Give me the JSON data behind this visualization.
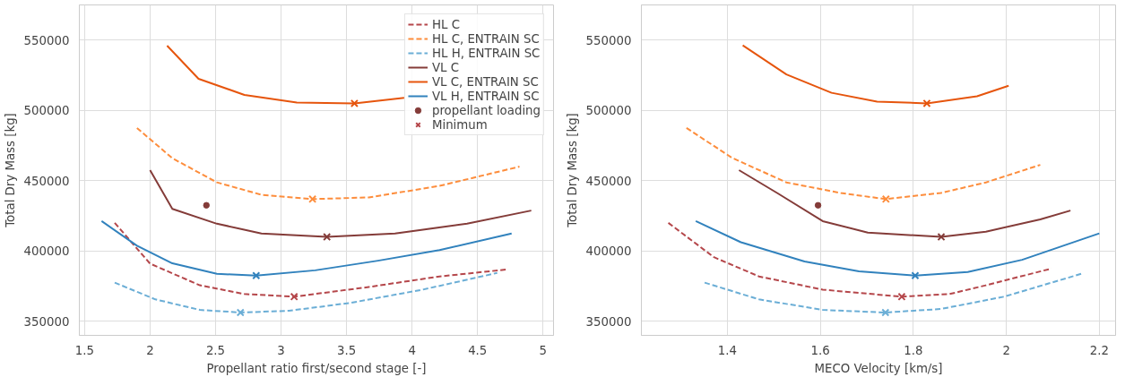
{
  "chart_data": [
    {
      "type": "line",
      "xlabel": "Propellant ratio first/second stage [-]",
      "ylabel": "Total Dry Mass [kg]",
      "xlim": [
        1.46,
        5.08
      ],
      "ylim": [
        340000,
        575000
      ],
      "xticks": [
        1.5,
        2.0,
        2.5,
        3.0,
        3.5,
        4.0,
        4.5,
        5.0
      ],
      "yticks": [
        350000,
        400000,
        450000,
        500000,
        550000
      ],
      "grid": true,
      "legend": "top right",
      "series": [
        {
          "name": "HL C",
          "color": "#b5474b",
          "line_style": "dashed",
          "x": [
            1.73,
            2.0,
            2.38,
            2.72,
            3.1,
            3.67,
            4.21,
            4.73
          ],
          "values": [
            420000,
            391000,
            375600,
            369400,
            367500,
            374400,
            381900,
            386900
          ]
        },
        {
          "name": "HL C, ENTRAIN SC",
          "color": "#fd8d3c",
          "line_style": "dashed",
          "x": [
            1.9,
            2.17,
            2.51,
            2.85,
            3.24,
            3.67,
            4.21,
            4.82
          ],
          "values": [
            487500,
            466000,
            448800,
            440000,
            436900,
            438100,
            446300,
            460000
          ]
        },
        {
          "name": "HL H, ENTRAIN SC",
          "color": "#6baed6",
          "line_style": "dashed",
          "x": [
            1.73,
            2.04,
            2.38,
            2.69,
            3.06,
            3.53,
            4.08,
            4.65
          ],
          "values": [
            377500,
            365600,
            358100,
            356250,
            357500,
            363100,
            372500,
            384400
          ]
        },
        {
          "name": "VL C",
          "color": "#843c39",
          "line_style": "solid",
          "x": [
            2.0,
            2.17,
            2.51,
            2.85,
            3.35,
            3.87,
            4.42,
            4.91
          ],
          "values": [
            457500,
            430000,
            419400,
            412500,
            410000,
            412500,
            419400,
            428750
          ]
        },
        {
          "name": "VL C, ENTRAIN SC",
          "color": "#e6550d",
          "line_style": "solid",
          "x": [
            2.13,
            2.37,
            2.72,
            3.12,
            3.56,
            3.94
          ],
          "values": [
            546000,
            522500,
            511000,
            505600,
            505000,
            509000
          ]
        },
        {
          "name": "VL H, ENTRAIN SC",
          "color": "#3182bd",
          "line_style": "solid",
          "x": [
            1.63,
            1.9,
            2.17,
            2.51,
            2.81,
            3.26,
            3.74,
            4.21,
            4.76
          ],
          "values": [
            421250,
            403750,
            391250,
            383750,
            382500,
            386250,
            393100,
            400600,
            412500
          ]
        },
        {
          "type": "scatter",
          "name": "propellant loading",
          "marker": "circle",
          "color": "#843c39",
          "x": [
            2.43
          ],
          "values": [
            432500
          ]
        },
        {
          "type": "scatter",
          "name": "Minimum",
          "marker": "cross",
          "colors": [
            "#b5474b",
            "#fd8d3c",
            "#6baed6",
            "#843c39",
            "#e6550d",
            "#3182bd"
          ],
          "x": [
            3.1,
            3.24,
            2.69,
            3.35,
            3.56,
            2.81
          ],
          "values": [
            367500,
            436900,
            356250,
            410000,
            505000,
            382500
          ]
        }
      ]
    },
    {
      "type": "line",
      "xlabel": "MECO Velocity [km/s]",
      "ylabel": "Total Dry Mass [kg]",
      "xlim": [
        1.215,
        2.235
      ],
      "ylim": [
        340000,
        575000
      ],
      "xticks": [
        1.4,
        1.6,
        1.8,
        2.0,
        2.2
      ],
      "yticks": [
        350000,
        400000,
        450000,
        500000,
        550000
      ],
      "grid": true,
      "series": [
        {
          "color": "#b5474b",
          "line_style": "dashed",
          "x": [
            1.273,
            1.371,
            1.468,
            1.605,
            1.775,
            1.878,
            1.956,
            2.097
          ],
          "values": [
            420000,
            395600,
            381900,
            372500,
            367500,
            369400,
            375600,
            387500
          ]
        },
        {
          "color": "#fd8d3c",
          "line_style": "dashed",
          "x": [
            1.312,
            1.41,
            1.527,
            1.644,
            1.741,
            1.859,
            1.956,
            2.073
          ],
          "values": [
            487500,
            466250,
            448750,
            441250,
            436900,
            441250,
            448750,
            461250
          ]
        },
        {
          "color": "#6baed6",
          "line_style": "dashed",
          "x": [
            1.351,
            1.468,
            1.605,
            1.74,
            1.859,
            1.995,
            2.161
          ],
          "values": [
            377500,
            365600,
            358100,
            356250,
            358750,
            367500,
            383750
          ]
        },
        {
          "color": "#843c39",
          "line_style": "solid",
          "x": [
            1.425,
            1.507,
            1.605,
            1.702,
            1.86,
            1.956,
            2.073,
            2.138
          ],
          "values": [
            457500,
            441250,
            421250,
            413100,
            410000,
            413750,
            422500,
            428750
          ]
        },
        {
          "color": "#e6550d",
          "line_style": "solid",
          "x": [
            1.433,
            1.527,
            1.624,
            1.722,
            1.829,
            1.937,
            2.005
          ],
          "values": [
            546250,
            525600,
            512500,
            506250,
            505000,
            510000,
            517500
          ]
        },
        {
          "color": "#3182bd",
          "line_style": "solid",
          "x": [
            1.332,
            1.429,
            1.566,
            1.683,
            1.804,
            1.917,
            2.034,
            2.2
          ],
          "values": [
            421250,
            406250,
            392500,
            385600,
            382500,
            385000,
            393750,
            412500
          ]
        },
        {
          "type": "scatter",
          "marker": "circle",
          "color": "#843c39",
          "x": [
            1.595
          ],
          "values": [
            432500
          ]
        },
        {
          "type": "scatter",
          "marker": "cross",
          "colors": [
            "#b5474b",
            "#fd8d3c",
            "#6baed6",
            "#843c39",
            "#e6550d",
            "#3182bd"
          ],
          "x": [
            1.775,
            1.741,
            1.74,
            1.86,
            1.829,
            1.804
          ],
          "values": [
            367500,
            436900,
            356250,
            410000,
            505000,
            382500
          ]
        }
      ]
    }
  ]
}
